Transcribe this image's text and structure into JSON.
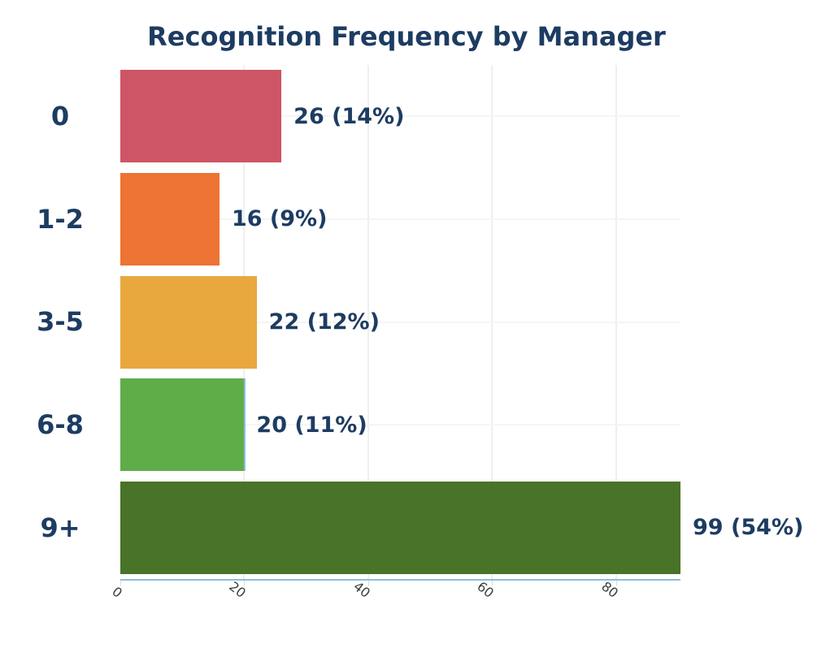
{
  "title": "Recognition Frequency by Manager",
  "colors": {
    "background": "#ffffff",
    "title_text": "#1d3c62",
    "label_text": "#1d3c62",
    "tick_text": "#3d3d3d",
    "grid_vertical": "#efefef",
    "grid_horizontal": "#f5f5f5",
    "axis_accent": "#8cbede",
    "tick_mark": "#d9d9d9"
  },
  "chart_data": {
    "type": "bar",
    "orientation": "horizontal",
    "title": "Recognition Frequency by Manager",
    "categories": [
      "0",
      "1-2",
      "3-5",
      "6-8",
      "9+"
    ],
    "values": [
      26,
      16,
      22,
      20,
      99
    ],
    "value_labels": [
      "26 (14%)",
      "16 (9%)",
      "22 (12%)",
      "20 (11%)",
      "99 (54%)"
    ],
    "percentages": [
      14,
      9,
      12,
      11,
      54
    ],
    "bar_colors": [
      "#cd5565",
      "#ed7434",
      "#e8a83e",
      "#5fad49",
      "#497328"
    ],
    "xlabel": "",
    "ylabel": "",
    "x_ticks": [
      0,
      20,
      40,
      60,
      80
    ],
    "xlim": [
      0,
      90.4
    ],
    "grid": true,
    "legend": false
  }
}
